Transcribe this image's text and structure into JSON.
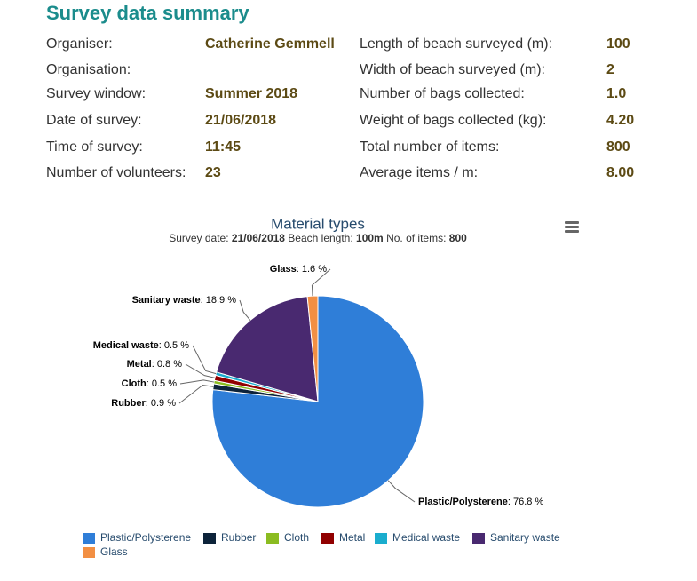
{
  "header": {
    "title": "Survey data summary"
  },
  "summary": {
    "left": [
      {
        "label": "Organiser:",
        "value": "Catherine Gemmell"
      },
      {
        "label": "Organisation:"
      },
      {
        "label": "Survey window:",
        "value": "Summer 2018"
      },
      {
        "label": "Date of survey:",
        "value": "21/06/2018"
      },
      {
        "label": "Time of survey:",
        "value": "11:45"
      },
      {
        "label": "Number of volunteers:",
        "value": "23"
      }
    ],
    "right": [
      {
        "label": "Length of beach surveyed (m):",
        "value": "100"
      },
      {
        "label": "Width of beach surveyed (m):",
        "value": "2"
      },
      {
        "label": "Number of bags collected:",
        "value": "1.0"
      },
      {
        "label": "Weight of bags collected (kg):",
        "value": "4.20"
      },
      {
        "label": "Total number of items:",
        "value": "800"
      },
      {
        "label": "Average items / m:",
        "value": "8.00"
      }
    ]
  },
  "chart_data": {
    "type": "pie",
    "title": "Material types",
    "subtitle_parts": [
      "Survey date: ",
      "21/06/2018",
      " Beach length: ",
      "100m",
      " No. of items: ",
      "800"
    ],
    "categories": [
      "Plastic/Polysterene",
      "Rubber",
      "Cloth",
      "Metal",
      "Medical waste",
      "Sanitary waste",
      "Glass"
    ],
    "values": [
      76.8,
      0.9,
      0.5,
      0.8,
      0.5,
      18.9,
      1.6
    ],
    "value_labels": [
      ": 76.8 %",
      ": 0.9 %",
      ": 0.5 %",
      ": 0.8 %",
      ": 0.5 %",
      ": 18.9 %",
      ": 1.6 %"
    ],
    "colors": [
      "#2f7ed8",
      "#0d233a",
      "#8bbc21",
      "#910000",
      "#1aadce",
      "#492970",
      "#f28f43"
    ]
  }
}
